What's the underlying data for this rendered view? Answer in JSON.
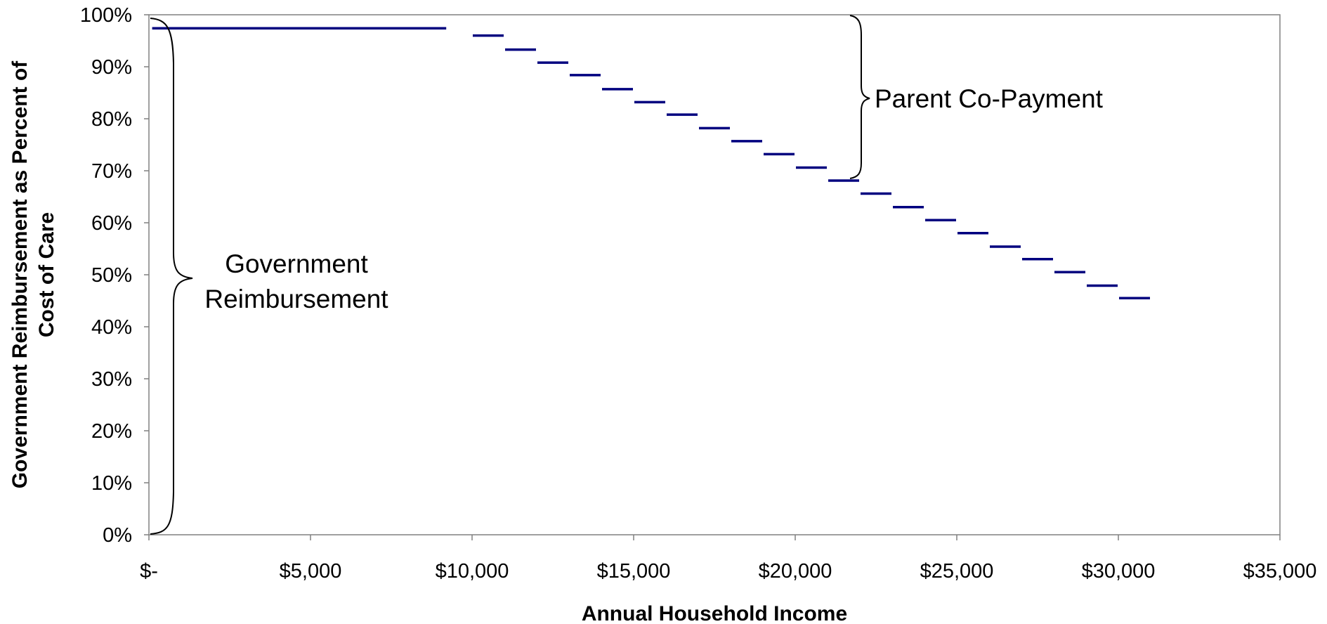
{
  "chart_data": {
    "type": "line",
    "xlabel": "Annual Household Income",
    "ylabel_lines": [
      "Government Reimbursement as Percent of",
      "Cost of Care"
    ],
    "xlim": [
      0,
      35000
    ],
    "ylim": [
      0,
      1
    ],
    "x_ticks": [
      0,
      5000,
      10000,
      15000,
      20000,
      25000,
      30000,
      35000
    ],
    "x_tick_labels": [
      "$-",
      "$5,000",
      "$10,000",
      "$15,000",
      "$20,000",
      "$25,000",
      "$30,000",
      "$35,000"
    ],
    "y_ticks": [
      0,
      0.1,
      0.2,
      0.3,
      0.4,
      0.5,
      0.6,
      0.7,
      0.8,
      0.9,
      1.0
    ],
    "y_tick_labels": [
      "0%",
      "10%",
      "20%",
      "30%",
      "40%",
      "50%",
      "60%",
      "70%",
      "80%",
      "90%",
      "100%"
    ],
    "grid": false,
    "series_color": "#00007f",
    "steps": [
      {
        "x_start": 100,
        "x_end": 9200,
        "y": 0.974
      },
      {
        "x_start": 10000,
        "x_end": 11000,
        "y": 0.96
      },
      {
        "x_start": 11000,
        "x_end": 12000,
        "y": 0.933
      },
      {
        "x_start": 12000,
        "x_end": 13000,
        "y": 0.908
      },
      {
        "x_start": 13000,
        "x_end": 14000,
        "y": 0.884
      },
      {
        "x_start": 14000,
        "x_end": 15000,
        "y": 0.857
      },
      {
        "x_start": 15000,
        "x_end": 16000,
        "y": 0.832
      },
      {
        "x_start": 16000,
        "x_end": 17000,
        "y": 0.808
      },
      {
        "x_start": 17000,
        "x_end": 18000,
        "y": 0.782
      },
      {
        "x_start": 18000,
        "x_end": 19000,
        "y": 0.757
      },
      {
        "x_start": 19000,
        "x_end": 20000,
        "y": 0.732
      },
      {
        "x_start": 20000,
        "x_end": 21000,
        "y": 0.706
      },
      {
        "x_start": 21000,
        "x_end": 22000,
        "y": 0.681
      },
      {
        "x_start": 22000,
        "x_end": 23000,
        "y": 0.656
      },
      {
        "x_start": 23000,
        "x_end": 24000,
        "y": 0.63
      },
      {
        "x_start": 24000,
        "x_end": 25000,
        "y": 0.605
      },
      {
        "x_start": 25000,
        "x_end": 26000,
        "y": 0.58
      },
      {
        "x_start": 26000,
        "x_end": 27000,
        "y": 0.554
      },
      {
        "x_start": 27000,
        "x_end": 28000,
        "y": 0.53
      },
      {
        "x_start": 28000,
        "x_end": 29000,
        "y": 0.505
      },
      {
        "x_start": 29000,
        "x_end": 30000,
        "y": 0.479
      },
      {
        "x_start": 30000,
        "x_end": 31000,
        "y": 0.455
      }
    ],
    "annotations": {
      "government_reimbursement": [
        "Government",
        "Reimbursement"
      ],
      "parent_co_payment": "Parent Co-Payment"
    }
  }
}
